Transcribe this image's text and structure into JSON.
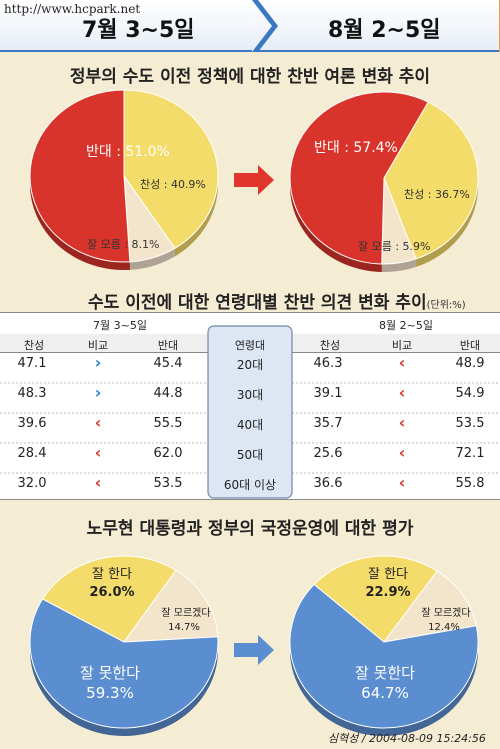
{
  "watermark": "http://www.hcpark.net",
  "header": {
    "left_period": "7월 3~5일",
    "right_period": "8월 2~5일"
  },
  "section1": {
    "title": "정부의 수도 이전 정책에 대한 찬반 여론 변화 추이"
  },
  "section2": {
    "title": "수도 이전에 대한 연령대별 찬반 의견 변화 추이",
    "unit": "(단위:%)"
  },
  "section3": {
    "title": "노무현 대통령과 정부의 국정운영에 대한 평가"
  },
  "credit": "심혁성 / 2004-08-09 15:24:56",
  "colors": {
    "red": "#d9342b",
    "yellow": "#f4dc6a",
    "cream": "#f3e4cc",
    "blue": "#5b8ed0",
    "navy": "#2a2f7a",
    "arrow_red": "#e0362c",
    "arrow_blue": "#5b8ed0"
  },
  "chart_data": [
    {
      "type": "pie",
      "title": "",
      "period": "7월 3~5일",
      "slices": [
        {
          "label": "반대 : 51.0%",
          "value": 51.0,
          "color": "#d9342b"
        },
        {
          "label": "찬성 : 40.9%",
          "value": 40.9,
          "color": "#f4dc6a"
        },
        {
          "label": "잘 모름 : 8.1%",
          "value": 8.1,
          "color": "#f3e4cc"
        }
      ]
    },
    {
      "type": "pie",
      "title": "",
      "period": "8월 2~5일",
      "slices": [
        {
          "label": "반대 : 57.4%",
          "value": 57.4,
          "color": "#d9342b"
        },
        {
          "label": "찬성 : 36.7%",
          "value": 36.7,
          "color": "#f4dc6a"
        },
        {
          "label": "잘 모름 : 5.9%",
          "value": 5.9,
          "color": "#f3e4cc"
        }
      ]
    },
    {
      "type": "table",
      "title": "",
      "periods": [
        "7월 3~5일",
        "8월 2~5일"
      ],
      "columns": [
        "찬성",
        "비교",
        "반대",
        "연령대",
        "찬성",
        "비교",
        "반대"
      ],
      "rows": [
        {
          "age": "20대",
          "jul_for": "47.1",
          "jul_cmp": "›",
          "jul_against": "45.4",
          "aug_for": "46.3",
          "aug_cmp": "‹",
          "aug_against": "48.9"
        },
        {
          "age": "30대",
          "jul_for": "48.3",
          "jul_cmp": "›",
          "jul_against": "44.8",
          "aug_for": "39.1",
          "aug_cmp": "‹",
          "aug_against": "54.9"
        },
        {
          "age": "40대",
          "jul_for": "39.6",
          "jul_cmp": "‹",
          "jul_against": "55.5",
          "aug_for": "35.7",
          "aug_cmp": "‹",
          "aug_against": "53.5"
        },
        {
          "age": "50대",
          "jul_for": "28.4",
          "jul_cmp": "‹",
          "jul_against": "62.0",
          "aug_for": "25.6",
          "aug_cmp": "‹",
          "aug_against": "72.1"
        },
        {
          "age": "60대 이상",
          "jul_for": "32.0",
          "jul_cmp": "‹",
          "jul_against": "53.5",
          "aug_for": "36.6",
          "aug_cmp": "‹",
          "aug_against": "55.8"
        }
      ]
    },
    {
      "type": "pie",
      "title": "",
      "period": "7월 3~5일",
      "slices": [
        {
          "label": "잘 못한다",
          "pct": "59.3%",
          "value": 59.3,
          "color": "#5b8ed0"
        },
        {
          "label": "잘 한다",
          "pct": "26.0%",
          "value": 26.0,
          "color": "#f4dc6a"
        },
        {
          "label": "잘 모르겠다",
          "pct": "14.7%",
          "value": 14.7,
          "color": "#f3e4cc"
        }
      ]
    },
    {
      "type": "pie",
      "title": "",
      "period": "8월 2~5일",
      "slices": [
        {
          "label": "잘 못한다",
          "pct": "64.7%",
          "value": 64.7,
          "color": "#5b8ed0"
        },
        {
          "label": "잘 한다",
          "pct": "22.9%",
          "value": 22.9,
          "color": "#f4dc6a"
        },
        {
          "label": "잘 모르겠다",
          "pct": "12.4%",
          "value": 12.4,
          "color": "#f3e4cc"
        }
      ]
    }
  ]
}
